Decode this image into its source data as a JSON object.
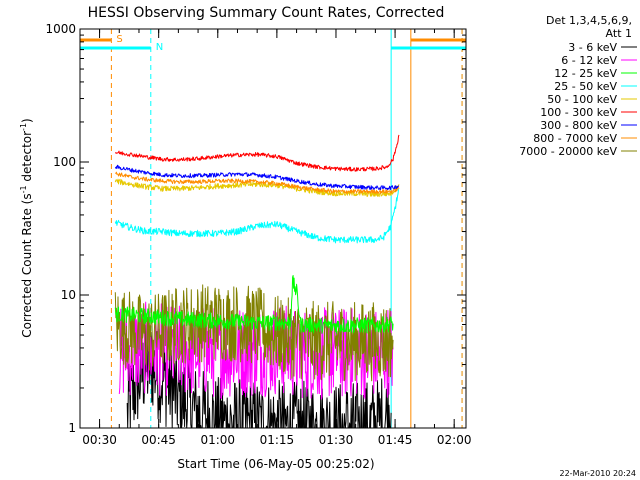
{
  "chart_data": {
    "type": "line",
    "title": "HESSI Observing Summary Count Rates, Corrected",
    "xlabel": "Start Time (06-May-05 00:25:02)",
    "ylabel": "Corrected Count Rate (s⁻¹ detector⁻¹)",
    "ylabel_parts": {
      "main": "Corrected Count Rate (s",
      "sup1": "-1",
      "mid": " detector",
      "sup2": "-1",
      "end": ")"
    },
    "y_scale": "log",
    "ylim": [
      1,
      1000
    ],
    "xlim": [
      "00:25:02",
      "02:03:00"
    ],
    "x_ticks": [
      "00:30",
      "00:45",
      "01:00",
      "01:15",
      "01:30",
      "01:45",
      "02:00"
    ],
    "y_ticks": [
      "1",
      "10",
      "100",
      "1000"
    ],
    "legend_header": [
      "Det 1,3,4,5,6,9,",
      "Att 1"
    ],
    "legend_position": "right",
    "timestamp": "22-Mar-2010 20:24",
    "grid": false,
    "series": [
      {
        "name": "3 - 6 keV",
        "color": "#000000",
        "x": [
          "00:37:00",
          "00:39:00",
          "00:41:00",
          "00:43:00",
          "00:45:00",
          "00:47:00",
          "00:50:00",
          "00:55:00",
          "01:00:00",
          "01:10:00",
          "01:20:00",
          "01:30:00",
          "01:40:00",
          "01:44:00"
        ],
        "y": [
          1.2,
          2.0,
          2.6,
          3.0,
          2.5,
          2.2,
          1.7,
          1.3,
          1.1,
          1.05,
          1.02,
          1.0,
          1.05,
          1.3
        ]
      },
      {
        "name": "6 - 12 keV",
        "color": "#ff00ff",
        "x": [
          "00:35:00",
          "00:40:00",
          "00:45:00",
          "00:50:00",
          "01:00:00",
          "01:10:00",
          "01:15:00",
          "01:20:00",
          "01:25:00",
          "01:30:00",
          "01:35:00",
          "01:40:00",
          "01:44:30"
        ],
        "y": [
          3.6,
          4.0,
          3.9,
          3.8,
          3.7,
          3.8,
          3.9,
          3.7,
          3.6,
          3.6,
          3.7,
          3.6,
          3.9
        ]
      },
      {
        "name": "12 - 25 keV",
        "color": "#00ff00",
        "x": [
          "00:34:00",
          "00:40:00",
          "00:45:00",
          "00:50:00",
          "00:55:00",
          "01:00:00",
          "01:05:00",
          "01:10:00",
          "01:15:00",
          "01:18:30",
          "01:19:00",
          "01:20:00",
          "01:21:00",
          "01:25:00",
          "01:30:00",
          "01:35:00",
          "01:40:00",
          "01:44:30"
        ],
        "y": [
          7.2,
          7.0,
          6.8,
          6.6,
          6.5,
          6.4,
          6.3,
          6.2,
          6.2,
          6.2,
          12.5,
          10.5,
          6.0,
          5.9,
          5.9,
          5.9,
          5.9,
          6.1
        ]
      },
      {
        "name": "25 - 50 keV",
        "color": "#00ffff",
        "x": [
          "00:34:00",
          "00:38:00",
          "00:42:00",
          "00:46:00",
          "00:50:00",
          "00:55:00",
          "01:00:00",
          "01:05:00",
          "01:10:00",
          "01:15:00",
          "01:20:00",
          "01:25:00",
          "01:30:00",
          "01:35:00",
          "01:40:00",
          "01:42:00",
          "01:44:00",
          "01:45:00",
          "01:46:00"
        ],
        "y": [
          35,
          32,
          30,
          30,
          29,
          29,
          29,
          30,
          33,
          34,
          30,
          27,
          26,
          26,
          26,
          27,
          33,
          45,
          62
        ]
      },
      {
        "name": "50 - 100 keV",
        "color": "#e6c800",
        "x": [
          "00:34:00",
          "00:38:00",
          "00:42:00",
          "00:46:00",
          "00:50:00",
          "00:55:00",
          "01:00:00",
          "01:05:00",
          "01:10:00",
          "01:15:00",
          "01:20:00",
          "01:25:00",
          "01:30:00",
          "01:35:00",
          "01:40:00",
          "01:44:00",
          "01:45:00",
          "01:46:00"
        ],
        "y": [
          72,
          68,
          65,
          63,
          63,
          64,
          66,
          67,
          68,
          67,
          63,
          60,
          58,
          58,
          57,
          58,
          62,
          68
        ]
      },
      {
        "name": "100 - 300 keV",
        "color": "#ff0000",
        "x": [
          "00:34:00",
          "00:38:00",
          "00:42:00",
          "00:46:00",
          "00:50:00",
          "00:55:00",
          "01:00:00",
          "01:05:00",
          "01:10:00",
          "01:15:00",
          "01:20:00",
          "01:25:00",
          "01:30:00",
          "01:35:00",
          "01:40:00",
          "01:43:00",
          "01:44:30",
          "01:45:30",
          "01:46:00"
        ],
        "y": [
          118,
          114,
          109,
          105,
          104,
          106,
          110,
          113,
          114,
          110,
          98,
          92,
          89,
          88,
          89,
          92,
          105,
          135,
          160
        ]
      },
      {
        "name": "300 - 800 keV",
        "color": "#0000ff",
        "x": [
          "00:34:00",
          "00:38:00",
          "00:42:00",
          "00:46:00",
          "00:50:00",
          "00:55:00",
          "01:00:00",
          "01:05:00",
          "01:10:00",
          "01:15:00",
          "01:20:00",
          "01:25:00",
          "01:30:00",
          "01:35:00",
          "01:40:00",
          "01:44:00",
          "01:46:00"
        ],
        "y": [
          92,
          87,
          83,
          80,
          79,
          79,
          80,
          81,
          80,
          77,
          72,
          68,
          66,
          65,
          64,
          64,
          66
        ]
      },
      {
        "name": "800 - 7000 keV",
        "color": "#ff8c00",
        "x": [
          "00:34:00",
          "00:38:00",
          "00:42:00",
          "00:46:00",
          "00:50:00",
          "00:55:00",
          "01:00:00",
          "01:05:00",
          "01:10:00",
          "01:15:00",
          "01:20:00",
          "01:25:00",
          "01:30:00",
          "01:35:00",
          "01:40:00",
          "01:44:00",
          "01:46:00"
        ],
        "y": [
          82,
          77,
          74,
          72,
          71,
          71,
          72,
          72,
          71,
          69,
          65,
          62,
          60,
          60,
          60,
          60,
          63
        ]
      },
      {
        "name": "7000 - 20000 keV",
        "color": "#808000",
        "x": [
          "00:34:00",
          "00:38:00",
          "00:42:00",
          "00:46:00",
          "00:50:00",
          "00:55:00",
          "01:00:00",
          "01:05:00",
          "01:10:00",
          "01:15:00",
          "01:20:00",
          "01:25:00",
          "01:30:00",
          "01:35:00",
          "01:40:00",
          "01:44:30"
        ],
        "y": [
          6.0,
          5.5,
          5.0,
          5.5,
          6.0,
          6.2,
          6.3,
          6.2,
          5.8,
          5.0,
          4.6,
          4.5,
          4.5,
          4.5,
          4.5,
          4.6
        ]
      }
    ],
    "flag_bars": [
      {
        "label": "S",
        "color": "#ff8c00",
        "segments": [
          [
            "00:25:02",
            "00:33:00"
          ],
          [
            "01:49:00",
            "02:03:00"
          ]
        ]
      },
      {
        "label": "N",
        "color": "#00ffff",
        "segments": [
          [
            "00:25:02",
            "00:43:00"
          ],
          [
            "01:44:00",
            "02:03:00"
          ]
        ]
      }
    ],
    "vlines": [
      {
        "time": "00:33:00",
        "color": "#ff8c00",
        "style": "dashed"
      },
      {
        "time": "00:43:00",
        "color": "#00ffff",
        "style": "dashed"
      },
      {
        "time": "01:44:00",
        "color": "#00ffff",
        "style": "solid"
      },
      {
        "time": "01:49:00",
        "color": "#ff8c00",
        "style": "solid"
      },
      {
        "time": "02:02:00",
        "color": "#00ffff",
        "style": "dashed"
      },
      {
        "time": "02:02:00",
        "color": "#ff8c00",
        "style": "dashed"
      }
    ]
  }
}
